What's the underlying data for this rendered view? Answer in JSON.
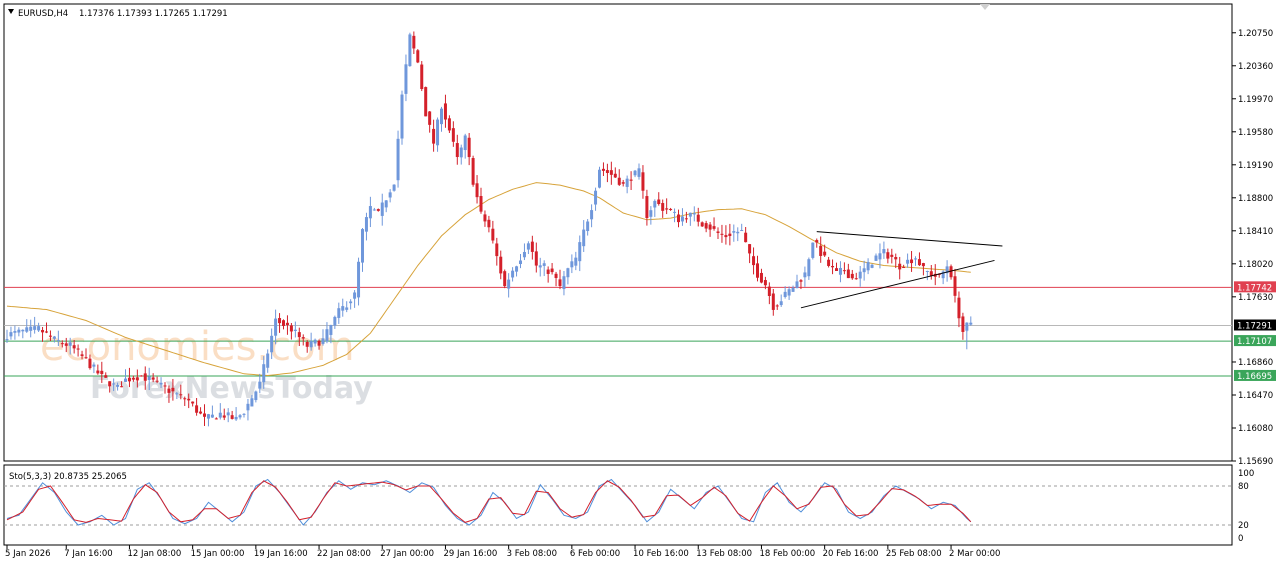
{
  "header": {
    "symbol_tf": "EURUSD,H4",
    "ohlc": "1.17376 1.17393 1.17265 1.17291"
  },
  "watermark": {
    "line1": "economies.com",
    "line2": "ForexNewsToday"
  },
  "colors": {
    "bull": "#6f97db",
    "bear": "#d4202a",
    "ma": "#d7a33a",
    "resistance_line": "#e04050",
    "support_line": "#3aa55a",
    "current_price_line": "#b8b8b8",
    "stoch_main": "#4f8ed9",
    "stoch_signal": "#d4202a"
  },
  "chart_data": {
    "type": "candlestick",
    "symbol": "EURUSD",
    "timeframe": "H4",
    "ylim": [
      1.1569,
      1.2109
    ],
    "y_ticks": [
      "1.20750",
      "1.20360",
      "1.19970",
      "1.19580",
      "1.19190",
      "1.18800",
      "1.18410",
      "1.18020",
      "1.17630",
      "1.16860",
      "1.16470",
      "1.16080",
      "1.15690"
    ],
    "x_ticks": [
      "5 Jan 2026",
      "7 Jan 16:00",
      "12 Jan 08:00",
      "15 Jan 00:00",
      "19 Jan 16:00",
      "22 Jan 08:00",
      "27 Jan 00:00",
      "29 Jan 16:00",
      "3 Feb 08:00",
      "6 Feb 00:00",
      "10 Feb 16:00",
      "13 Feb 08:00",
      "18 Feb 00:00",
      "20 Feb 16:00",
      "25 Feb 08:00",
      "2 Mar 00:00"
    ],
    "x_tick_index": [
      0,
      15,
      31,
      47,
      63,
      79,
      95,
      111,
      127,
      143,
      159,
      175,
      191,
      207,
      223,
      239
    ],
    "key_prices": {
      "current": {
        "label": "1.17291",
        "value": 1.17291
      },
      "resistance": {
        "label": "1.17742",
        "value": 1.17742
      },
      "support_1": {
        "label": "1.17107",
        "value": 1.17107
      },
      "support_2": {
        "label": "1.16695",
        "value": 1.16695
      }
    },
    "price_anchors": [
      [
        0,
        1.1718
      ],
      [
        4,
        1.1722
      ],
      [
        8,
        1.1725
      ],
      [
        12,
        1.1712
      ],
      [
        16,
        1.1705
      ],
      [
        20,
        1.1688
      ],
      [
        24,
        1.1668
      ],
      [
        28,
        1.1655
      ],
      [
        30,
        1.1665
      ],
      [
        34,
        1.167
      ],
      [
        38,
        1.166
      ],
      [
        42,
        1.165
      ],
      [
        46,
        1.164
      ],
      [
        50,
        1.1618
      ],
      [
        54,
        1.1625
      ],
      [
        58,
        1.1618
      ],
      [
        60,
        1.1628
      ],
      [
        64,
        1.166
      ],
      [
        68,
        1.1735
      ],
      [
        72,
        1.1725
      ],
      [
        76,
        1.1705
      ],
      [
        80,
        1.1712
      ],
      [
        84,
        1.1745
      ],
      [
        88,
        1.1765
      ],
      [
        90,
        1.184
      ],
      [
        92,
        1.1868
      ],
      [
        94,
        1.186
      ],
      [
        96,
        1.188
      ],
      [
        98,
        1.19
      ],
      [
        100,
        1.2
      ],
      [
        102,
        1.207
      ],
      [
        104,
        1.204
      ],
      [
        106,
        1.198
      ],
      [
        108,
        1.1945
      ],
      [
        110,
        1.199
      ],
      [
        112,
        1.196
      ],
      [
        114,
        1.1925
      ],
      [
        116,
        1.195
      ],
      [
        118,
        1.19
      ],
      [
        120,
        1.186
      ],
      [
        122,
        1.1845
      ],
      [
        124,
        1.181
      ],
      [
        126,
        1.1775
      ],
      [
        128,
        1.1795
      ],
      [
        130,
        1.181
      ],
      [
        132,
        1.183
      ],
      [
        134,
        1.18
      ],
      [
        136,
        1.1798
      ],
      [
        138,
        1.179
      ],
      [
        140,
        1.1775
      ],
      [
        142,
        1.1795
      ],
      [
        144,
        1.1808
      ],
      [
        146,
        1.184
      ],
      [
        148,
        1.187
      ],
      [
        150,
        1.1915
      ],
      [
        152,
        1.191
      ],
      [
        154,
        1.1905
      ],
      [
        156,
        1.1895
      ],
      [
        158,
        1.1905
      ],
      [
        160,
        1.191
      ],
      [
        162,
        1.186
      ],
      [
        164,
        1.1875
      ],
      [
        166,
        1.1868
      ],
      [
        168,
        1.1865
      ],
      [
        170,
        1.1855
      ],
      [
        172,
        1.186
      ],
      [
        174,
        1.1858
      ],
      [
        176,
        1.185
      ],
      [
        178,
        1.1845
      ],
      [
        180,
        1.1838
      ],
      [
        182,
        1.1835
      ],
      [
        184,
        1.184
      ],
      [
        186,
        1.184
      ],
      [
        188,
        1.181
      ],
      [
        190,
        1.179
      ],
      [
        192,
        1.1778
      ],
      [
        194,
        1.1752
      ],
      [
        196,
        1.176
      ],
      [
        198,
        1.177
      ],
      [
        200,
        1.178
      ],
      [
        202,
        1.179
      ],
      [
        204,
        1.183
      ],
      [
        206,
        1.1815
      ],
      [
        208,
        1.18
      ],
      [
        210,
        1.179
      ],
      [
        212,
        1.1795
      ],
      [
        214,
        1.1785
      ],
      [
        216,
        1.179
      ],
      [
        218,
        1.18
      ],
      [
        220,
        1.181
      ],
      [
        222,
        1.1815
      ],
      [
        224,
        1.181
      ],
      [
        226,
        1.18
      ],
      [
        228,
        1.1805
      ],
      [
        230,
        1.181
      ],
      [
        232,
        1.1795
      ],
      [
        234,
        1.179
      ],
      [
        236,
        1.1785
      ],
      [
        238,
        1.18
      ],
      [
        239,
        1.179
      ],
      [
        240,
        1.176
      ],
      [
        241,
        1.1742
      ],
      [
        242,
        1.1722
      ],
      [
        243,
        1.1728
      ],
      [
        244,
        1.1729
      ]
    ],
    "ma_anchors": [
      [
        0,
        1.1752
      ],
      [
        10,
        1.1748
      ],
      [
        20,
        1.1735
      ],
      [
        30,
        1.1715
      ],
      [
        40,
        1.17
      ],
      [
        50,
        1.1685
      ],
      [
        60,
        1.1672
      ],
      [
        66,
        1.167
      ],
      [
        72,
        1.1673
      ],
      [
        80,
        1.1682
      ],
      [
        86,
        1.1695
      ],
      [
        92,
        1.172
      ],
      [
        98,
        1.176
      ],
      [
        104,
        1.18
      ],
      [
        110,
        1.1835
      ],
      [
        116,
        1.186
      ],
      [
        122,
        1.1878
      ],
      [
        128,
        1.189
      ],
      [
        134,
        1.1898
      ],
      [
        140,
        1.1895
      ],
      [
        146,
        1.1888
      ],
      [
        150,
        1.188
      ],
      [
        156,
        1.1862
      ],
      [
        162,
        1.1854
      ],
      [
        168,
        1.1856
      ],
      [
        174,
        1.1862
      ],
      [
        180,
        1.1866
      ],
      [
        186,
        1.1867
      ],
      [
        192,
        1.186
      ],
      [
        198,
        1.1846
      ],
      [
        204,
        1.183
      ],
      [
        210,
        1.1815
      ],
      [
        216,
        1.1805
      ],
      [
        222,
        1.18
      ],
      [
        228,
        1.1798
      ],
      [
        234,
        1.1796
      ],
      [
        240,
        1.1794
      ],
      [
        244,
        1.1792
      ]
    ],
    "trendlines": [
      {
        "name": "triangle-upper",
        "from": [
          205,
          1.184
        ],
        "to": [
          252,
          1.1823
        ]
      },
      {
        "name": "triangle-lower",
        "from": [
          201,
          1.175
        ],
        "to": [
          250,
          1.1806
        ]
      }
    ],
    "stochastic": {
      "label": "Sto(5,3,3) 20.8735 25.2065",
      "levels": [
        "100",
        "80",
        "20",
        "0"
      ],
      "main_anchors": [
        [
          0,
          30
        ],
        [
          3,
          35
        ],
        [
          6,
          60
        ],
        [
          9,
          85
        ],
        [
          12,
          70
        ],
        [
          15,
          40
        ],
        [
          18,
          20
        ],
        [
          21,
          25
        ],
        [
          24,
          35
        ],
        [
          27,
          20
        ],
        [
          30,
          30
        ],
        [
          33,
          75
        ],
        [
          36,
          85
        ],
        [
          39,
          60
        ],
        [
          42,
          30
        ],
        [
          45,
          22
        ],
        [
          48,
          30
        ],
        [
          51,
          55
        ],
        [
          54,
          40
        ],
        [
          57,
          25
        ],
        [
          60,
          40
        ],
        [
          63,
          80
        ],
        [
          66,
          90
        ],
        [
          69,
          70
        ],
        [
          72,
          45
        ],
        [
          75,
          20
        ],
        [
          78,
          40
        ],
        [
          81,
          70
        ],
        [
          84,
          88
        ],
        [
          87,
          75
        ],
        [
          90,
          85
        ],
        [
          93,
          82
        ],
        [
          96,
          88
        ],
        [
          99,
          80
        ],
        [
          102,
          70
        ],
        [
          105,
          85
        ],
        [
          108,
          78
        ],
        [
          111,
          50
        ],
        [
          114,
          30
        ],
        [
          117,
          20
        ],
        [
          120,
          35
        ],
        [
          123,
          70
        ],
        [
          126,
          55
        ],
        [
          129,
          30
        ],
        [
          132,
          40
        ],
        [
          135,
          82
        ],
        [
          138,
          60
        ],
        [
          141,
          35
        ],
        [
          144,
          30
        ],
        [
          147,
          40
        ],
        [
          150,
          80
        ],
        [
          153,
          90
        ],
        [
          156,
          70
        ],
        [
          159,
          50
        ],
        [
          162,
          25
        ],
        [
          165,
          40
        ],
        [
          168,
          75
        ],
        [
          171,
          60
        ],
        [
          174,
          45
        ],
        [
          177,
          70
        ],
        [
          180,
          80
        ],
        [
          183,
          55
        ],
        [
          186,
          30
        ],
        [
          189,
          25
        ],
        [
          192,
          70
        ],
        [
          195,
          85
        ],
        [
          198,
          55
        ],
        [
          201,
          40
        ],
        [
          204,
          60
        ],
        [
          207,
          85
        ],
        [
          210,
          75
        ],
        [
          213,
          40
        ],
        [
          216,
          30
        ],
        [
          219,
          40
        ],
        [
          222,
          65
        ],
        [
          225,
          80
        ],
        [
          228,
          70
        ],
        [
          231,
          60
        ],
        [
          234,
          45
        ],
        [
          237,
          55
        ],
        [
          240,
          50
        ],
        [
          243,
          30
        ],
        [
          244,
          25
        ]
      ],
      "signal_anchors": [
        [
          0,
          28
        ],
        [
          4,
          40
        ],
        [
          8,
          75
        ],
        [
          11,
          80
        ],
        [
          14,
          55
        ],
        [
          17,
          28
        ],
        [
          20,
          24
        ],
        [
          23,
          30
        ],
        [
          26,
          28
        ],
        [
          29,
          26
        ],
        [
          32,
          60
        ],
        [
          35,
          82
        ],
        [
          38,
          70
        ],
        [
          41,
          40
        ],
        [
          44,
          25
        ],
        [
          47,
          28
        ],
        [
          50,
          45
        ],
        [
          53,
          45
        ],
        [
          56,
          30
        ],
        [
          59,
          35
        ],
        [
          62,
          70
        ],
        [
          65,
          88
        ],
        [
          68,
          78
        ],
        [
          71,
          55
        ],
        [
          74,
          28
        ],
        [
          77,
          32
        ],
        [
          80,
          60
        ],
        [
          83,
          85
        ],
        [
          86,
          80
        ],
        [
          89,
          82
        ],
        [
          92,
          84
        ],
        [
          95,
          86
        ],
        [
          98,
          82
        ],
        [
          101,
          74
        ],
        [
          104,
          80
        ],
        [
          107,
          80
        ],
        [
          110,
          60
        ],
        [
          113,
          38
        ],
        [
          116,
          24
        ],
        [
          119,
          30
        ],
        [
          122,
          60
        ],
        [
          125,
          62
        ],
        [
          128,
          38
        ],
        [
          131,
          36
        ],
        [
          134,
          72
        ],
        [
          137,
          70
        ],
        [
          140,
          45
        ],
        [
          143,
          32
        ],
        [
          146,
          36
        ],
        [
          149,
          70
        ],
        [
          152,
          88
        ],
        [
          155,
          78
        ],
        [
          158,
          58
        ],
        [
          161,
          32
        ],
        [
          164,
          35
        ],
        [
          167,
          65
        ],
        [
          170,
          66
        ],
        [
          173,
          50
        ],
        [
          176,
          62
        ],
        [
          179,
          78
        ],
        [
          182,
          65
        ],
        [
          185,
          38
        ],
        [
          188,
          26
        ],
        [
          191,
          55
        ],
        [
          194,
          80
        ],
        [
          197,
          65
        ],
        [
          200,
          45
        ],
        [
          203,
          52
        ],
        [
          206,
          78
        ],
        [
          209,
          80
        ],
        [
          212,
          52
        ],
        [
          215,
          34
        ],
        [
          218,
          36
        ],
        [
          221,
          55
        ],
        [
          224,
          76
        ],
        [
          227,
          74
        ],
        [
          230,
          64
        ],
        [
          233,
          50
        ],
        [
          236,
          52
        ],
        [
          239,
          52
        ],
        [
          242,
          38
        ],
        [
          244,
          25
        ]
      ]
    }
  }
}
